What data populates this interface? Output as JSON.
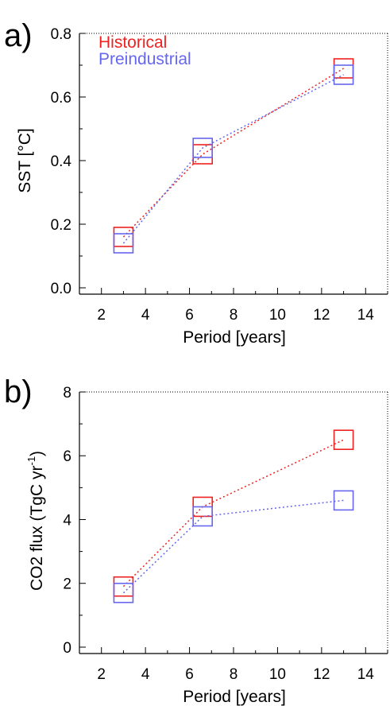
{
  "chart_data": [
    {
      "type": "line",
      "panel_label": "a)",
      "xlabel": "Period [years]",
      "ylabel": "SST [°C]",
      "xlim": [
        1,
        15
      ],
      "ylim": [
        -0.02,
        0.8
      ],
      "xticks": [
        2,
        4,
        6,
        8,
        10,
        12,
        14
      ],
      "yticks": [
        0.0,
        0.2,
        0.4,
        0.6,
        0.8
      ],
      "ytick_labels": [
        "0.0",
        "0.2",
        "0.4",
        "0.6",
        "0.8"
      ],
      "grid": false,
      "legend": "top-left",
      "series": [
        {
          "name": "Historical",
          "color": "#ee2222",
          "marker": "open-square",
          "line": "dotted",
          "x": [
            3.0,
            6.6,
            13.0
          ],
          "y": [
            0.16,
            0.42,
            0.69
          ]
        },
        {
          "name": "Preindustrial",
          "color": "#6666ee",
          "marker": "open-square",
          "line": "dotted",
          "x": [
            3.0,
            6.6,
            13.0
          ],
          "y": [
            0.14,
            0.44,
            0.67
          ]
        }
      ]
    },
    {
      "type": "line",
      "panel_label": "b)",
      "xlabel": "Period [years]",
      "ylabel": "CO2 flux (TgC yr",
      "ylabel_sup": "-1",
      "ylabel_tail": ")",
      "xlim": [
        1,
        15
      ],
      "ylim": [
        -0.2,
        8
      ],
      "xticks": [
        2,
        4,
        6,
        8,
        10,
        12,
        14
      ],
      "yticks": [
        0,
        2,
        4,
        6,
        8
      ],
      "ytick_labels": [
        "0",
        "2",
        "4",
        "6",
        "8"
      ],
      "grid": false,
      "legend": "none",
      "series": [
        {
          "name": "Historical",
          "color": "#ee2222",
          "marker": "open-square",
          "line": "dotted",
          "x": [
            3.0,
            6.6,
            13.0
          ],
          "y": [
            1.9,
            4.4,
            6.5
          ]
        },
        {
          "name": "Preindustrial",
          "color": "#6666ee",
          "marker": "open-square",
          "line": "dotted",
          "x": [
            3.0,
            6.6,
            13.0
          ],
          "y": [
            1.7,
            4.1,
            4.6
          ]
        }
      ]
    }
  ]
}
